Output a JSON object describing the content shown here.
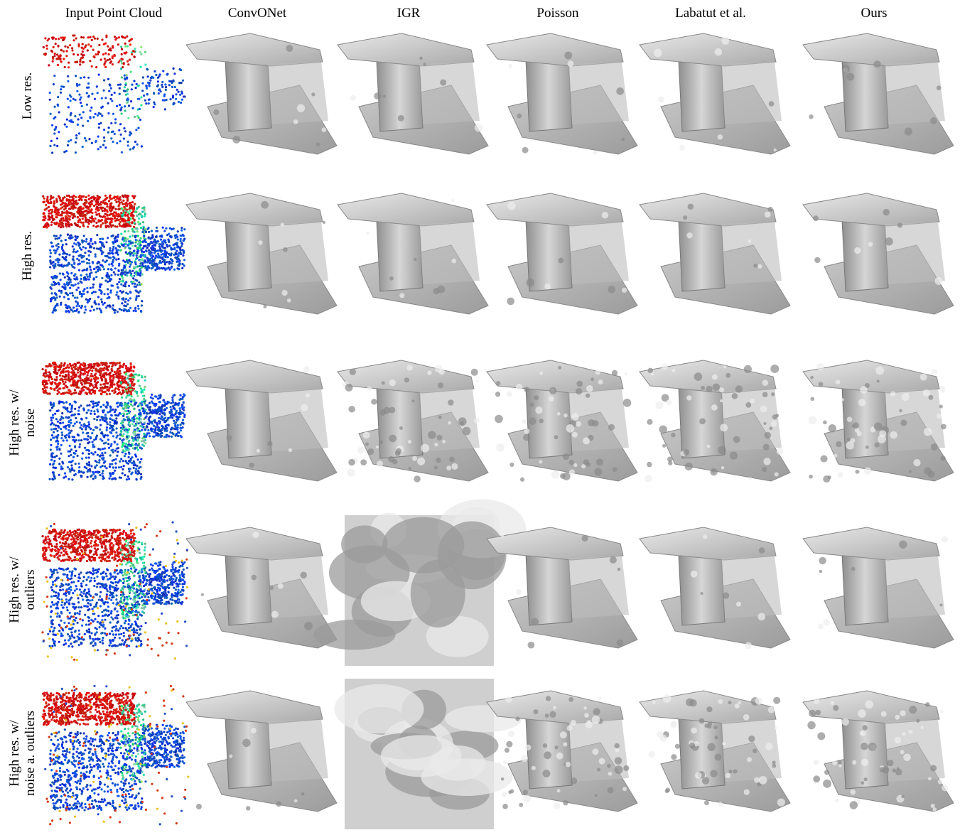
{
  "columns": [
    "Input Point Cloud",
    "ConvONet",
    "IGR",
    "Poisson",
    "Labatut et al.",
    "Ours"
  ],
  "rows": [
    [
      "Low res."
    ],
    [
      "High res."
    ],
    [
      "High res. w/",
      "noise"
    ],
    [
      "High res. w/",
      "outliers"
    ],
    [
      "High res. w/",
      "noise a. outliers"
    ]
  ]
}
